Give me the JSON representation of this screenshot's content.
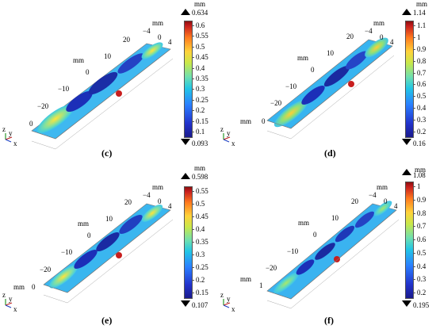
{
  "panels": [
    {
      "id": "c",
      "caption": "(c)",
      "unit": "mm",
      "max": "0.634",
      "min": "0.093",
      "ticks": [
        "0.6",
        "0.55",
        "0.5",
        "0.45",
        "0.4",
        "0.35",
        "0.3",
        "0.25",
        "0.2",
        "0.15",
        "0.1"
      ],
      "axis": {
        "unit_a": "mm",
        "unit_b": "mm",
        "y_vals": [
          "20",
          "10",
          "0",
          "−10",
          "−20",
          "0"
        ],
        "top_vals": [
          "−4",
          "0",
          "4"
        ]
      },
      "triad": {
        "z": "z",
        "y": "y",
        "x": "x"
      }
    },
    {
      "id": "d",
      "caption": "(d)",
      "unit": "mm",
      "max": "1.14",
      "min": "0.16",
      "ticks": [
        "1.1",
        "1",
        "0.9",
        "0.8",
        "0.7",
        "0.6",
        "0.5",
        "0.4",
        "0.3",
        "0.2"
      ],
      "axis": {
        "unit_a": "mm",
        "unit_b": "mm",
        "y_vals": [
          "20",
          "10",
          "0",
          "−10",
          "−20",
          "0"
        ],
        "top_vals": [
          "−4",
          "0",
          "4"
        ]
      },
      "triad": {
        "z": "z",
        "y": "y",
        "x": "x"
      }
    },
    {
      "id": "e",
      "caption": "(e)",
      "unit": "mm",
      "max": "0.598",
      "min": "0.107",
      "ticks": [
        "0.55",
        "0.5",
        "0.45",
        "0.4",
        "0.35",
        "0.3",
        "0.25",
        "0.2",
        "0.15"
      ],
      "axis": {
        "unit_a": "mm",
        "unit_b": "mm",
        "y_vals": [
          "20",
          "10",
          "0",
          "−10",
          "−20",
          "0"
        ],
        "top_vals": [
          "−4",
          "0",
          "4"
        ]
      },
      "triad": {
        "z": "z",
        "y": "y",
        "x": "x"
      }
    },
    {
      "id": "f",
      "caption": "(f)",
      "unit": "mm",
      "max": "1.08",
      "min": "0.195",
      "ticks": [
        "1",
        "0.9",
        "0.8",
        "0.7",
        "0.6",
        "0.5",
        "0.4",
        "0.3",
        "0.2"
      ],
      "axis": {
        "unit_a": "mm",
        "unit_b": "mm",
        "y_vals": [
          "20",
          "10",
          "0",
          "−10",
          "−20",
          "1"
        ],
        "top_vals": [
          "−4",
          "0",
          "4"
        ]
      },
      "triad": {
        "z": "z",
        "y": "y",
        "x": "x"
      }
    }
  ]
}
